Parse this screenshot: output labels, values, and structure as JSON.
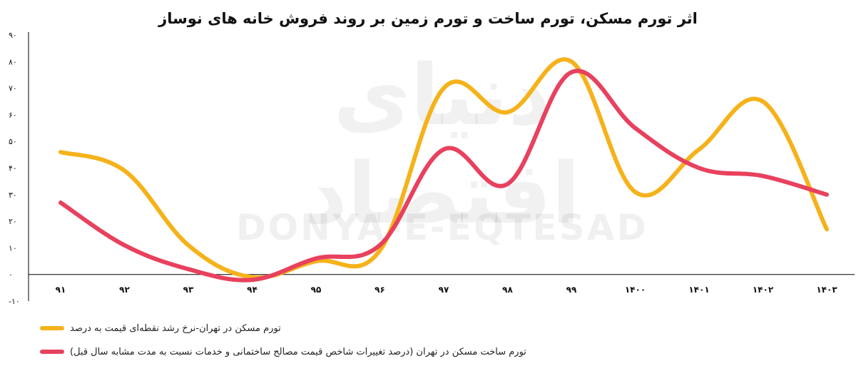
{
  "watermark": {
    "persian": "دنیای اقتصاد",
    "english": "DONYA-E-EQTESAD"
  },
  "chart_data": {
    "type": "line",
    "title": "اثر تورم مسکن، تورم ساخت و تورم زمین بر روند فروش خانه های نوساز",
    "categories": [
      "۹۱",
      "۹۲",
      "۹۳",
      "۹۴",
      "۹۵",
      "۹۶",
      "۹۷",
      "۹۸",
      "۹۹",
      "۱۴۰۰",
      "۱۴۰۱",
      "۱۴۰۲",
      "۱۴۰۳"
    ],
    "y_ticks": [
      "-۱۰",
      "۰",
      "۱۰",
      "۲۰",
      "۳۰",
      "۴۰",
      "۵۰",
      "۶۰",
      "۷۰",
      "۸۰",
      "۹۰"
    ],
    "ylim": [
      -10,
      90
    ],
    "grid": false,
    "legend_position": "bottom-left",
    "series": [
      {
        "name": "تورم مسکن در تهران-نرخ رشد نقطه‌ای قیمت به درصد",
        "color": "#F5B21A",
        "values": [
          46,
          39,
          11,
          -1,
          5,
          9,
          70,
          61,
          80,
          31,
          47,
          65,
          17
        ]
      },
      {
        "name": "تورم ساخت مسکن در تهران (درصد تغییرات شاخص قیمت مصالح ساختمانی و خدمات نسبت به مدت مشابه سال قبل)",
        "color": "#E8415E",
        "values": [
          27,
          11,
          2,
          -2,
          6,
          11,
          47,
          34,
          76,
          55,
          40,
          37,
          30
        ]
      }
    ]
  }
}
